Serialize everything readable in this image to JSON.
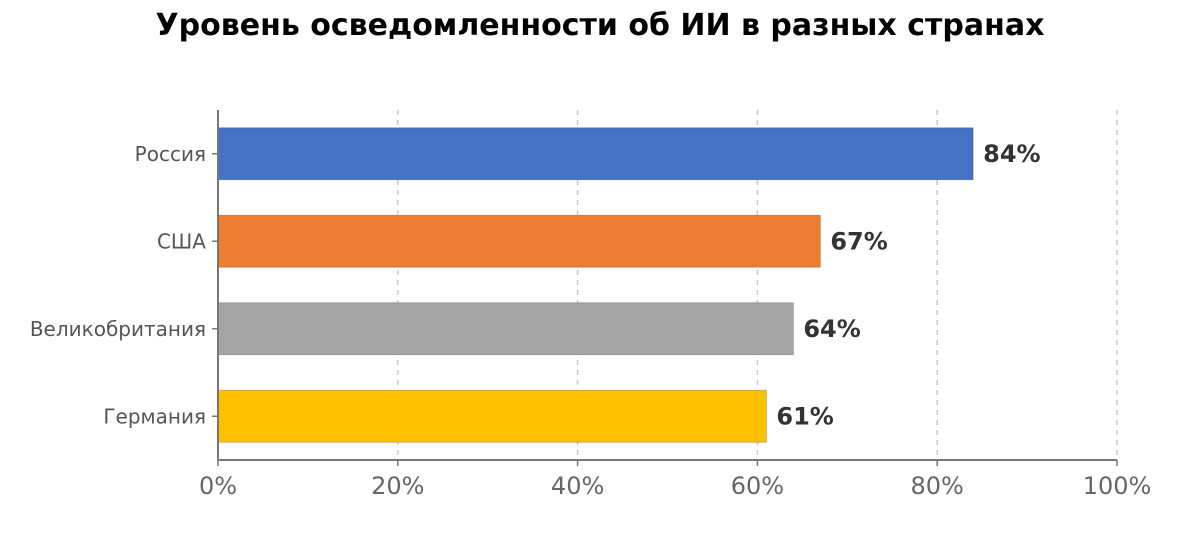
{
  "chart_data": {
    "type": "bar",
    "orientation": "horizontal",
    "title": "Уровень осведомленности об ИИ в разных странах",
    "categories": [
      "Россия",
      "США",
      "Великобритания",
      "Германия"
    ],
    "values": [
      84,
      67,
      64,
      61
    ],
    "data_labels": [
      "84%",
      "67%",
      "64%",
      "61%"
    ],
    "colors": [
      "#4472C4",
      "#ED7D31",
      "#A5A5A5",
      "#FFC000"
    ],
    "xlim": [
      0,
      100
    ],
    "xticks": [
      0,
      20,
      40,
      60,
      80,
      100
    ],
    "xtick_labels": [
      "0%",
      "20%",
      "40%",
      "60%",
      "80%",
      "100%"
    ],
    "grid": "vertical dashed",
    "legend": "none"
  }
}
